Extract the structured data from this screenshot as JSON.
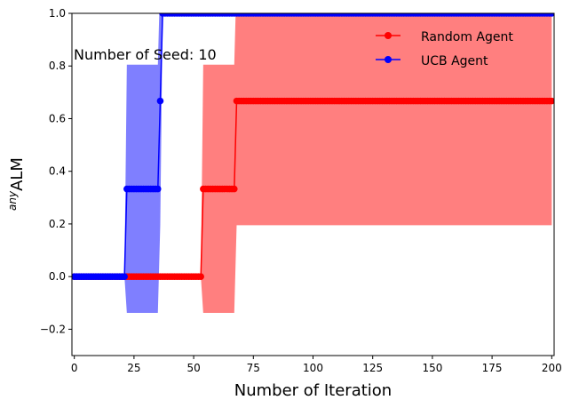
{
  "chart_data": {
    "type": "line",
    "title": "",
    "xlabel": "Number of Iteration",
    "ylabel_sup": "any",
    "ylabel": "ALM",
    "xlim": [
      -1,
      201
    ],
    "ylim": [
      -0.3,
      1.0
    ],
    "xticks": [
      0,
      25,
      50,
      75,
      100,
      125,
      150,
      175,
      200
    ],
    "yticks": [
      -0.2,
      0.0,
      0.2,
      0.4,
      0.6,
      0.8,
      1.0
    ],
    "xtick_labels": [
      "0",
      "25",
      "50",
      "75",
      "100",
      "125",
      "150",
      "175",
      "200"
    ],
    "ytick_labels": [
      "−0.2",
      "0.0",
      "0.2",
      "0.4",
      "0.6",
      "0.8",
      "1.0"
    ],
    "grid": false,
    "legend_position": "top-right",
    "annotation": "Number of Seed: 10",
    "series": [
      {
        "name": "Random Agent",
        "color": "#ff0000",
        "band_color": "#ff0000",
        "mean_steps": [
          {
            "from": 0,
            "to": 54,
            "value": 0.0
          },
          {
            "from": 54,
            "to": 68,
            "value": 0.333
          },
          {
            "from": 68,
            "to": 200,
            "value": 0.667
          }
        ],
        "band_steps": [
          {
            "from": 0,
            "to": 54,
            "lower": 0.0,
            "upper": 0.0
          },
          {
            "from": 54,
            "to": 67,
            "lower": -0.138,
            "upper": 0.805
          },
          {
            "from": 67,
            "to": 68,
            "lower": -0.138,
            "upper": 0.805
          },
          {
            "from": 68,
            "to": 200,
            "lower": 0.195,
            "upper": 1.138
          }
        ]
      },
      {
        "name": "UCB Agent",
        "color": "#0000ff",
        "band_color": "#0000ff",
        "mean_steps": [
          {
            "from": 0,
            "to": 22,
            "value": 0.0
          },
          {
            "from": 22,
            "to": 36,
            "value": 0.333
          },
          {
            "from": 36,
            "to": 37,
            "value": 0.667
          },
          {
            "from": 37,
            "to": 200,
            "value": 1.0
          }
        ],
        "band_steps": [
          {
            "from": 0,
            "to": 22,
            "lower": 0.0,
            "upper": 0.0
          },
          {
            "from": 22,
            "to": 36,
            "lower": -0.138,
            "upper": 0.805
          },
          {
            "from": 36,
            "to": 37,
            "lower": 0.195,
            "upper": 1.138
          },
          {
            "from": 37,
            "to": 200,
            "lower": 1.0,
            "upper": 1.0
          }
        ]
      }
    ]
  }
}
